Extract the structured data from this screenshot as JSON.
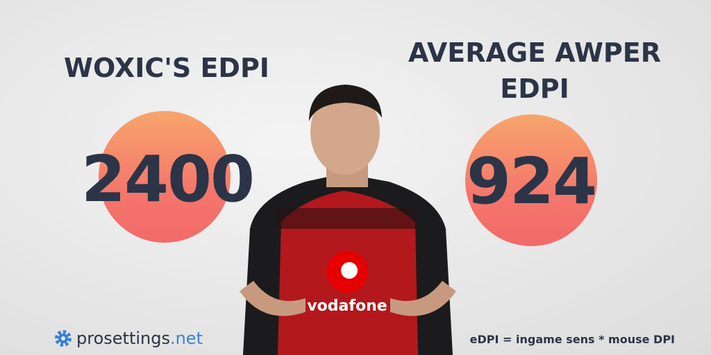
{
  "left": {
    "title": "WOXIC'S EDPI",
    "value": 2400
  },
  "right": {
    "title": "AVERAGE AWPER EDPI",
    "value": 924
  },
  "brand": {
    "name": "prosettings",
    "tld": ".net"
  },
  "footnote": "eDPI = ingame sens * mouse DPI",
  "jersey": {
    "sponsor": "vodafone"
  }
}
